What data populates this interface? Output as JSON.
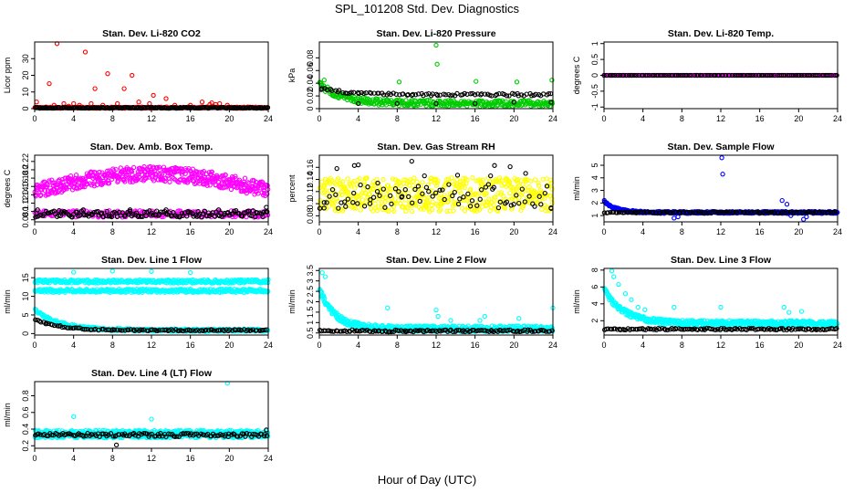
{
  "figure": {
    "title": "SPL_101208  Std. Dev. Diagnostics",
    "xlabel": "Hour of Day (UTC)"
  },
  "chart_data": [
    {
      "type": "scatter",
      "title": "Stan. Dev. Li-820 CO2",
      "ylabel": "Licor ppm",
      "xlim": [
        0,
        24
      ],
      "xticks": [
        0,
        4,
        8,
        12,
        16,
        20,
        24
      ],
      "ylim": [
        0,
        40
      ],
      "yticks": [
        0,
        10,
        20,
        30
      ],
      "series": [
        {
          "color": "#ff0000",
          "pattern": "flat",
          "base": 0.6,
          "noise": 0.4,
          "n": 260,
          "points": [
            [
              0.2,
              4
            ],
            [
              1.5,
              15
            ],
            [
              2.0,
              2
            ],
            [
              2.3,
              39
            ],
            [
              3.0,
              3
            ],
            [
              3.5,
              1.5
            ],
            [
              4.0,
              3
            ],
            [
              4.6,
              2
            ],
            [
              5.2,
              34
            ],
            [
              5.8,
              3
            ],
            [
              6.2,
              12
            ],
            [
              7.0,
              2
            ],
            [
              7.5,
              21
            ],
            [
              8.5,
              3
            ],
            [
              9.2,
              12
            ],
            [
              10.0,
              20
            ],
            [
              10.7,
              4
            ],
            [
              11.8,
              3
            ],
            [
              12.2,
              8
            ],
            [
              13.5,
              6
            ],
            [
              14.4,
              2
            ],
            [
              16.0,
              2
            ],
            [
              17.2,
              4
            ],
            [
              18.0,
              2.5
            ],
            [
              18.2,
              3.5
            ],
            [
              18.6,
              2.5
            ],
            [
              19.0,
              3
            ],
            [
              19.8,
              2
            ]
          ]
        },
        {
          "color": "#000000",
          "pattern": "flat",
          "base": 0.5,
          "noise": 0.3,
          "n": 190,
          "points": []
        }
      ]
    },
    {
      "type": "scatter",
      "title": "Stan. Dev. Li-820 Pressure",
      "ylabel": "kPa",
      "xlim": [
        0,
        24
      ],
      "xticks": [
        0,
        4,
        8,
        12,
        16,
        20,
        24
      ],
      "ylim": [
        0,
        0.105
      ],
      "yticks": [
        0,
        0.02,
        0.04,
        0.06,
        0.08
      ],
      "series": [
        {
          "color": "#00cc00",
          "pattern": "decay",
          "base": 0.008,
          "peak": 0.03,
          "tau": 2.5,
          "noise": 0.005,
          "n": 320,
          "points": [
            [
              0.5,
              0.045
            ],
            [
              12.0,
              0.1
            ],
            [
              12.1,
              0.07
            ],
            [
              8.2,
              0.042
            ],
            [
              16.1,
              0.043
            ],
            [
              20.3,
              0.042
            ],
            [
              23.9,
              0.045
            ]
          ]
        },
        {
          "color": "#000000",
          "pattern": "decay",
          "base": 0.022,
          "peak": 0.01,
          "tau": 3,
          "noise": 0.002,
          "n": 95,
          "points": [
            [
              4,
              0.008
            ],
            [
              8,
              0.008
            ],
            [
              12,
              0.008
            ],
            [
              16,
              0.008
            ],
            [
              20,
              0.01
            ],
            [
              23.8,
              0.01
            ]
          ]
        }
      ]
    },
    {
      "type": "scatter",
      "title": "Stan. Dev. Li-820 Temp.",
      "ylabel": "degrees C",
      "xlim": [
        0,
        24
      ],
      "xticks": [
        0,
        4,
        8,
        12,
        16,
        20,
        24
      ],
      "ylim": [
        -1.05,
        1.05
      ],
      "yticks": [
        -1.0,
        -0.5,
        0.0,
        0.5,
        1.0
      ],
      "series": [
        {
          "color": "#ff00ff",
          "pattern": "flat",
          "base": 0.0,
          "noise": 0.0,
          "n": 220,
          "points": []
        },
        {
          "color": "#000000",
          "pattern": "flat",
          "base": 0.0,
          "noise": 0.0,
          "n": 110,
          "points": []
        }
      ]
    },
    {
      "type": "scatter",
      "title": "Stan. Dev. Amb. Box Temp.",
      "ylabel": "degrees C",
      "xlim": [
        0,
        24
      ],
      "xticks": [
        0,
        4,
        8,
        12,
        16,
        20,
        24
      ],
      "ylim": [
        0.075,
        0.235
      ],
      "yticks": [
        0.08,
        0.1,
        0.12,
        0.14,
        0.16,
        0.18,
        0.2,
        0.22
      ],
      "series": [
        {
          "color": "#ff00ff",
          "pattern": "band",
          "base": 0.15,
          "bump": 0.04,
          "noise": 0.018,
          "n": 520,
          "points": []
        },
        {
          "color": "#ff00ff",
          "pattern": "flat",
          "base": 0.094,
          "noise": 0.008,
          "n": 240,
          "points": []
        },
        {
          "color": "#000000",
          "pattern": "flat",
          "base": 0.094,
          "noise": 0.008,
          "n": 150,
          "points": [
            [
              0.3,
              0.104
            ],
            [
              2.5,
              0.102
            ],
            [
              5.0,
              0.104
            ],
            [
              9.8,
              0.104
            ],
            [
              13.5,
              0.104
            ],
            [
              16.8,
              0.1
            ],
            [
              18.9,
              0.104
            ],
            [
              23.8,
              0.11
            ]
          ]
        }
      ]
    },
    {
      "type": "scatter",
      "title": "Stan. Dev. Gas Stream RH",
      "ylabel": "percent",
      "xlim": [
        0,
        24
      ],
      "xticks": [
        0,
        4,
        8,
        12,
        16,
        20,
        24
      ],
      "ylim": [
        0.07,
        0.18
      ],
      "yticks": [
        0.08,
        0.1,
        0.12,
        0.14,
        0.16
      ],
      "series": [
        {
          "color": "#ffff00",
          "pattern": "flat",
          "base": 0.115,
          "noise": 0.028,
          "n": 520,
          "points": []
        },
        {
          "color": "#000000",
          "pattern": "flat",
          "base": 0.112,
          "noise": 0.02,
          "n": 75,
          "points": [
            [
              0.5,
              0.102
            ],
            [
              1.8,
              0.158
            ],
            [
              2.6,
              0.103
            ],
            [
              3.6,
              0.163
            ],
            [
              4.0,
              0.164
            ],
            [
              5.2,
              0.1
            ],
            [
              6.0,
              0.134
            ],
            [
              8.5,
              0.112
            ],
            [
              9.5,
              0.17
            ],
            [
              10.8,
              0.146
            ],
            [
              14.2,
              0.147
            ],
            [
              17.6,
              0.146
            ],
            [
              18.0,
              0.163
            ],
            [
              19.6,
              0.161
            ],
            [
              21.2,
              0.15
            ],
            [
              23.8,
              0.093
            ]
          ]
        }
      ]
    },
    {
      "type": "scatter",
      "title": "Stan. Dev. Sample Flow",
      "ylabel": "ml/min",
      "xlim": [
        0,
        24
      ],
      "xticks": [
        0,
        4,
        8,
        12,
        16,
        20,
        24
      ],
      "ylim": [
        0.5,
        5.8
      ],
      "yticks": [
        1,
        2,
        3,
        4,
        5
      ],
      "series": [
        {
          "color": "#0000ff",
          "pattern": "decay",
          "base": 1.25,
          "peak": 0.9,
          "tau": 1.2,
          "noise": 0.08,
          "n": 420,
          "points": [
            [
              12.1,
              5.6
            ],
            [
              12.2,
              4.3
            ],
            [
              7.2,
              0.8
            ],
            [
              7.6,
              0.9
            ],
            [
              18.3,
              2.2
            ],
            [
              18.8,
              1.9
            ],
            [
              19.2,
              1.0
            ],
            [
              20.5,
              0.7
            ],
            [
              20.8,
              0.9
            ]
          ]
        },
        {
          "color": "#000000",
          "pattern": "flat",
          "base": 1.25,
          "noise": 0.05,
          "n": 130,
          "points": []
        }
      ]
    },
    {
      "type": "scatter",
      "title": "Stan. Dev. Line 1 Flow",
      "ylabel": "ml/min",
      "xlim": [
        0,
        24
      ],
      "xticks": [
        0,
        4,
        8,
        12,
        16,
        20,
        24
      ],
      "ylim": [
        -0.4,
        17.5
      ],
      "yticks": [
        0,
        5,
        10,
        15
      ],
      "series": [
        {
          "color": "#00ffff",
          "pattern": "flat",
          "base": 14.0,
          "noise": 0.45,
          "n": 330,
          "points": [
            [
              4,
              16.5
            ],
            [
              8,
              16.8
            ],
            [
              12,
              16.7
            ],
            [
              16,
              16.4
            ],
            [
              24,
              14.5
            ]
          ]
        },
        {
          "color": "#00ffff",
          "pattern": "flat",
          "base": 11.5,
          "noise": 0.45,
          "n": 330,
          "points": []
        },
        {
          "color": "#00ffff",
          "pattern": "decay",
          "base": 0.9,
          "peak": 5.5,
          "tau": 2.5,
          "noise": 0.35,
          "n": 330,
          "points": []
        },
        {
          "color": "#000000",
          "pattern": "decay",
          "base": 0.9,
          "peak": 3.0,
          "tau": 2.5,
          "noise": 0.2,
          "n": 120,
          "points": []
        }
      ]
    },
    {
      "type": "scatter",
      "title": "Stan. Dev. Line 2 Flow",
      "ylabel": "ml/min",
      "xlim": [
        0,
        24
      ],
      "xticks": [
        0,
        4,
        8,
        12,
        16,
        20,
        24
      ],
      "ylim": [
        0.4,
        3.6
      ],
      "yticks": [
        0.5,
        1.0,
        1.5,
        2.0,
        2.5,
        3.0,
        3.5
      ],
      "series": [
        {
          "color": "#00ffff",
          "pattern": "decay",
          "base": 0.7,
          "peak": 1.9,
          "tau": 1.6,
          "noise": 0.14,
          "n": 540,
          "points": [
            [
              0.3,
              3.4
            ],
            [
              0.6,
              3.2
            ],
            [
              7.0,
              1.7
            ],
            [
              12.0,
              1.6
            ],
            [
              12.2,
              1.3
            ],
            [
              13.5,
              1.1
            ],
            [
              16.5,
              1.1
            ],
            [
              17.0,
              1.3
            ],
            [
              20.5,
              1.2
            ],
            [
              24.0,
              1.7
            ]
          ]
        },
        {
          "color": "#000000",
          "pattern": "flat",
          "base": 0.6,
          "noise": 0.05,
          "n": 130,
          "points": []
        }
      ]
    },
    {
      "type": "scatter",
      "title": "Stan. Dev. Line 3 Flow",
      "ylabel": "ml/min",
      "xlim": [
        0,
        24
      ],
      "xticks": [
        0,
        4,
        8,
        12,
        16,
        20,
        24
      ],
      "ylim": [
        0.3,
        8.2
      ],
      "yticks": [
        2,
        4,
        6,
        8
      ],
      "series": [
        {
          "color": "#00ffff",
          "pattern": "decay",
          "base": 1.7,
          "peak": 4.0,
          "tau": 2.0,
          "noise": 0.3,
          "n": 500,
          "points": [
            [
              0.8,
              7.9
            ],
            [
              1.0,
              7.2
            ],
            [
              1.5,
              6.3
            ],
            [
              2.2,
              5.2
            ],
            [
              2.8,
              4.5
            ],
            [
              3.5,
              3.6
            ],
            [
              4.2,
              3.3
            ],
            [
              7.2,
              3.6
            ],
            [
              12.0,
              3.6
            ],
            [
              18.5,
              3.6
            ],
            [
              19.0,
              3.0
            ],
            [
              20.3,
              3.1
            ]
          ]
        },
        {
          "color": "#000000",
          "pattern": "flat",
          "base": 1.0,
          "noise": 0.1,
          "n": 130,
          "points": []
        }
      ]
    },
    {
      "type": "scatter",
      "title": "Stan. Dev. Line 4 (LT) Flow",
      "ylabel": "ml/min",
      "xlim": [
        0,
        24
      ],
      "xticks": [
        0,
        4,
        8,
        12,
        16,
        20,
        24
      ],
      "ylim": [
        0.17,
        0.97
      ],
      "yticks": [
        0.2,
        0.4,
        0.6,
        0.8
      ],
      "series": [
        {
          "color": "#00ffff",
          "pattern": "flat",
          "base": 0.34,
          "noise": 0.045,
          "n": 620,
          "points": [
            [
              4.0,
              0.55
            ],
            [
              12.0,
              0.52
            ],
            [
              19.8,
              0.95
            ]
          ]
        },
        {
          "color": "#000000",
          "pattern": "flat",
          "base": 0.33,
          "noise": 0.02,
          "n": 130,
          "points": [
            [
              8.4,
              0.21
            ],
            [
              23.8,
              0.39
            ]
          ]
        }
      ]
    }
  ]
}
